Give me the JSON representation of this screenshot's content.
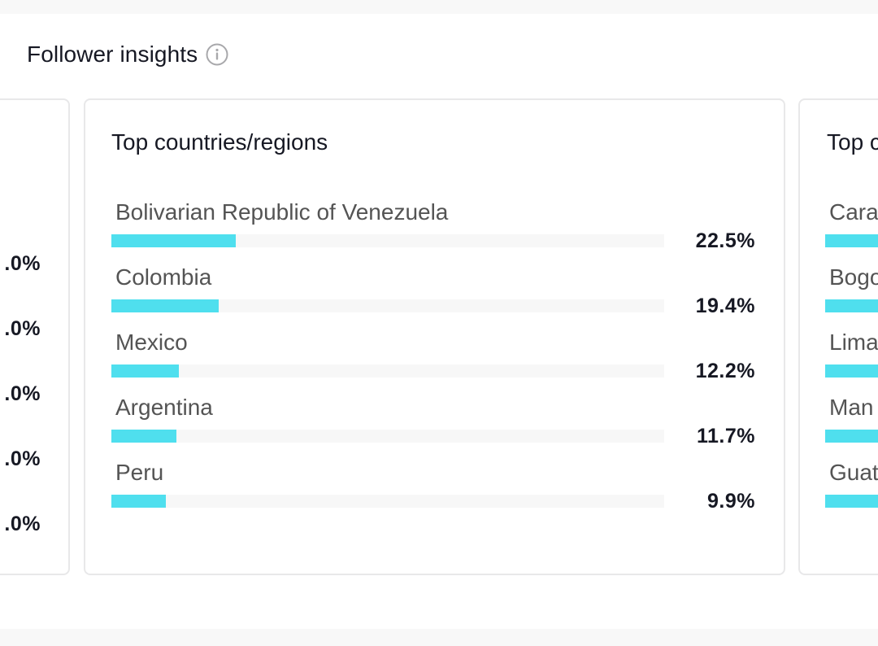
{
  "header": {
    "title": "Follower insights",
    "info_icon": "info-circle-icon"
  },
  "left_card": {
    "values": [
      ".0%",
      ".0%",
      ".0%",
      ".0%",
      ".0%"
    ]
  },
  "center_card": {
    "title": "Top countries/regions",
    "rows": [
      {
        "label": "Bolivarian Republic of Venezuela",
        "value": "22.5%",
        "fraction": 0.225
      },
      {
        "label": "Colombia",
        "value": "19.4%",
        "fraction": 0.194
      },
      {
        "label": "Mexico",
        "value": "12.2%",
        "fraction": 0.122
      },
      {
        "label": "Argentina",
        "value": "11.7%",
        "fraction": 0.117
      },
      {
        "label": "Peru",
        "value": "9.9%",
        "fraction": 0.099
      }
    ]
  },
  "right_card": {
    "title": "Top c",
    "rows": [
      {
        "label": "Cara"
      },
      {
        "label": "Bogo"
      },
      {
        "label": "Lima"
      },
      {
        "label": "Man"
      },
      {
        "label": "Guat"
      }
    ]
  },
  "colors": {
    "bar_fill": "#4fdfee",
    "bar_track": "#f7f7f7"
  }
}
